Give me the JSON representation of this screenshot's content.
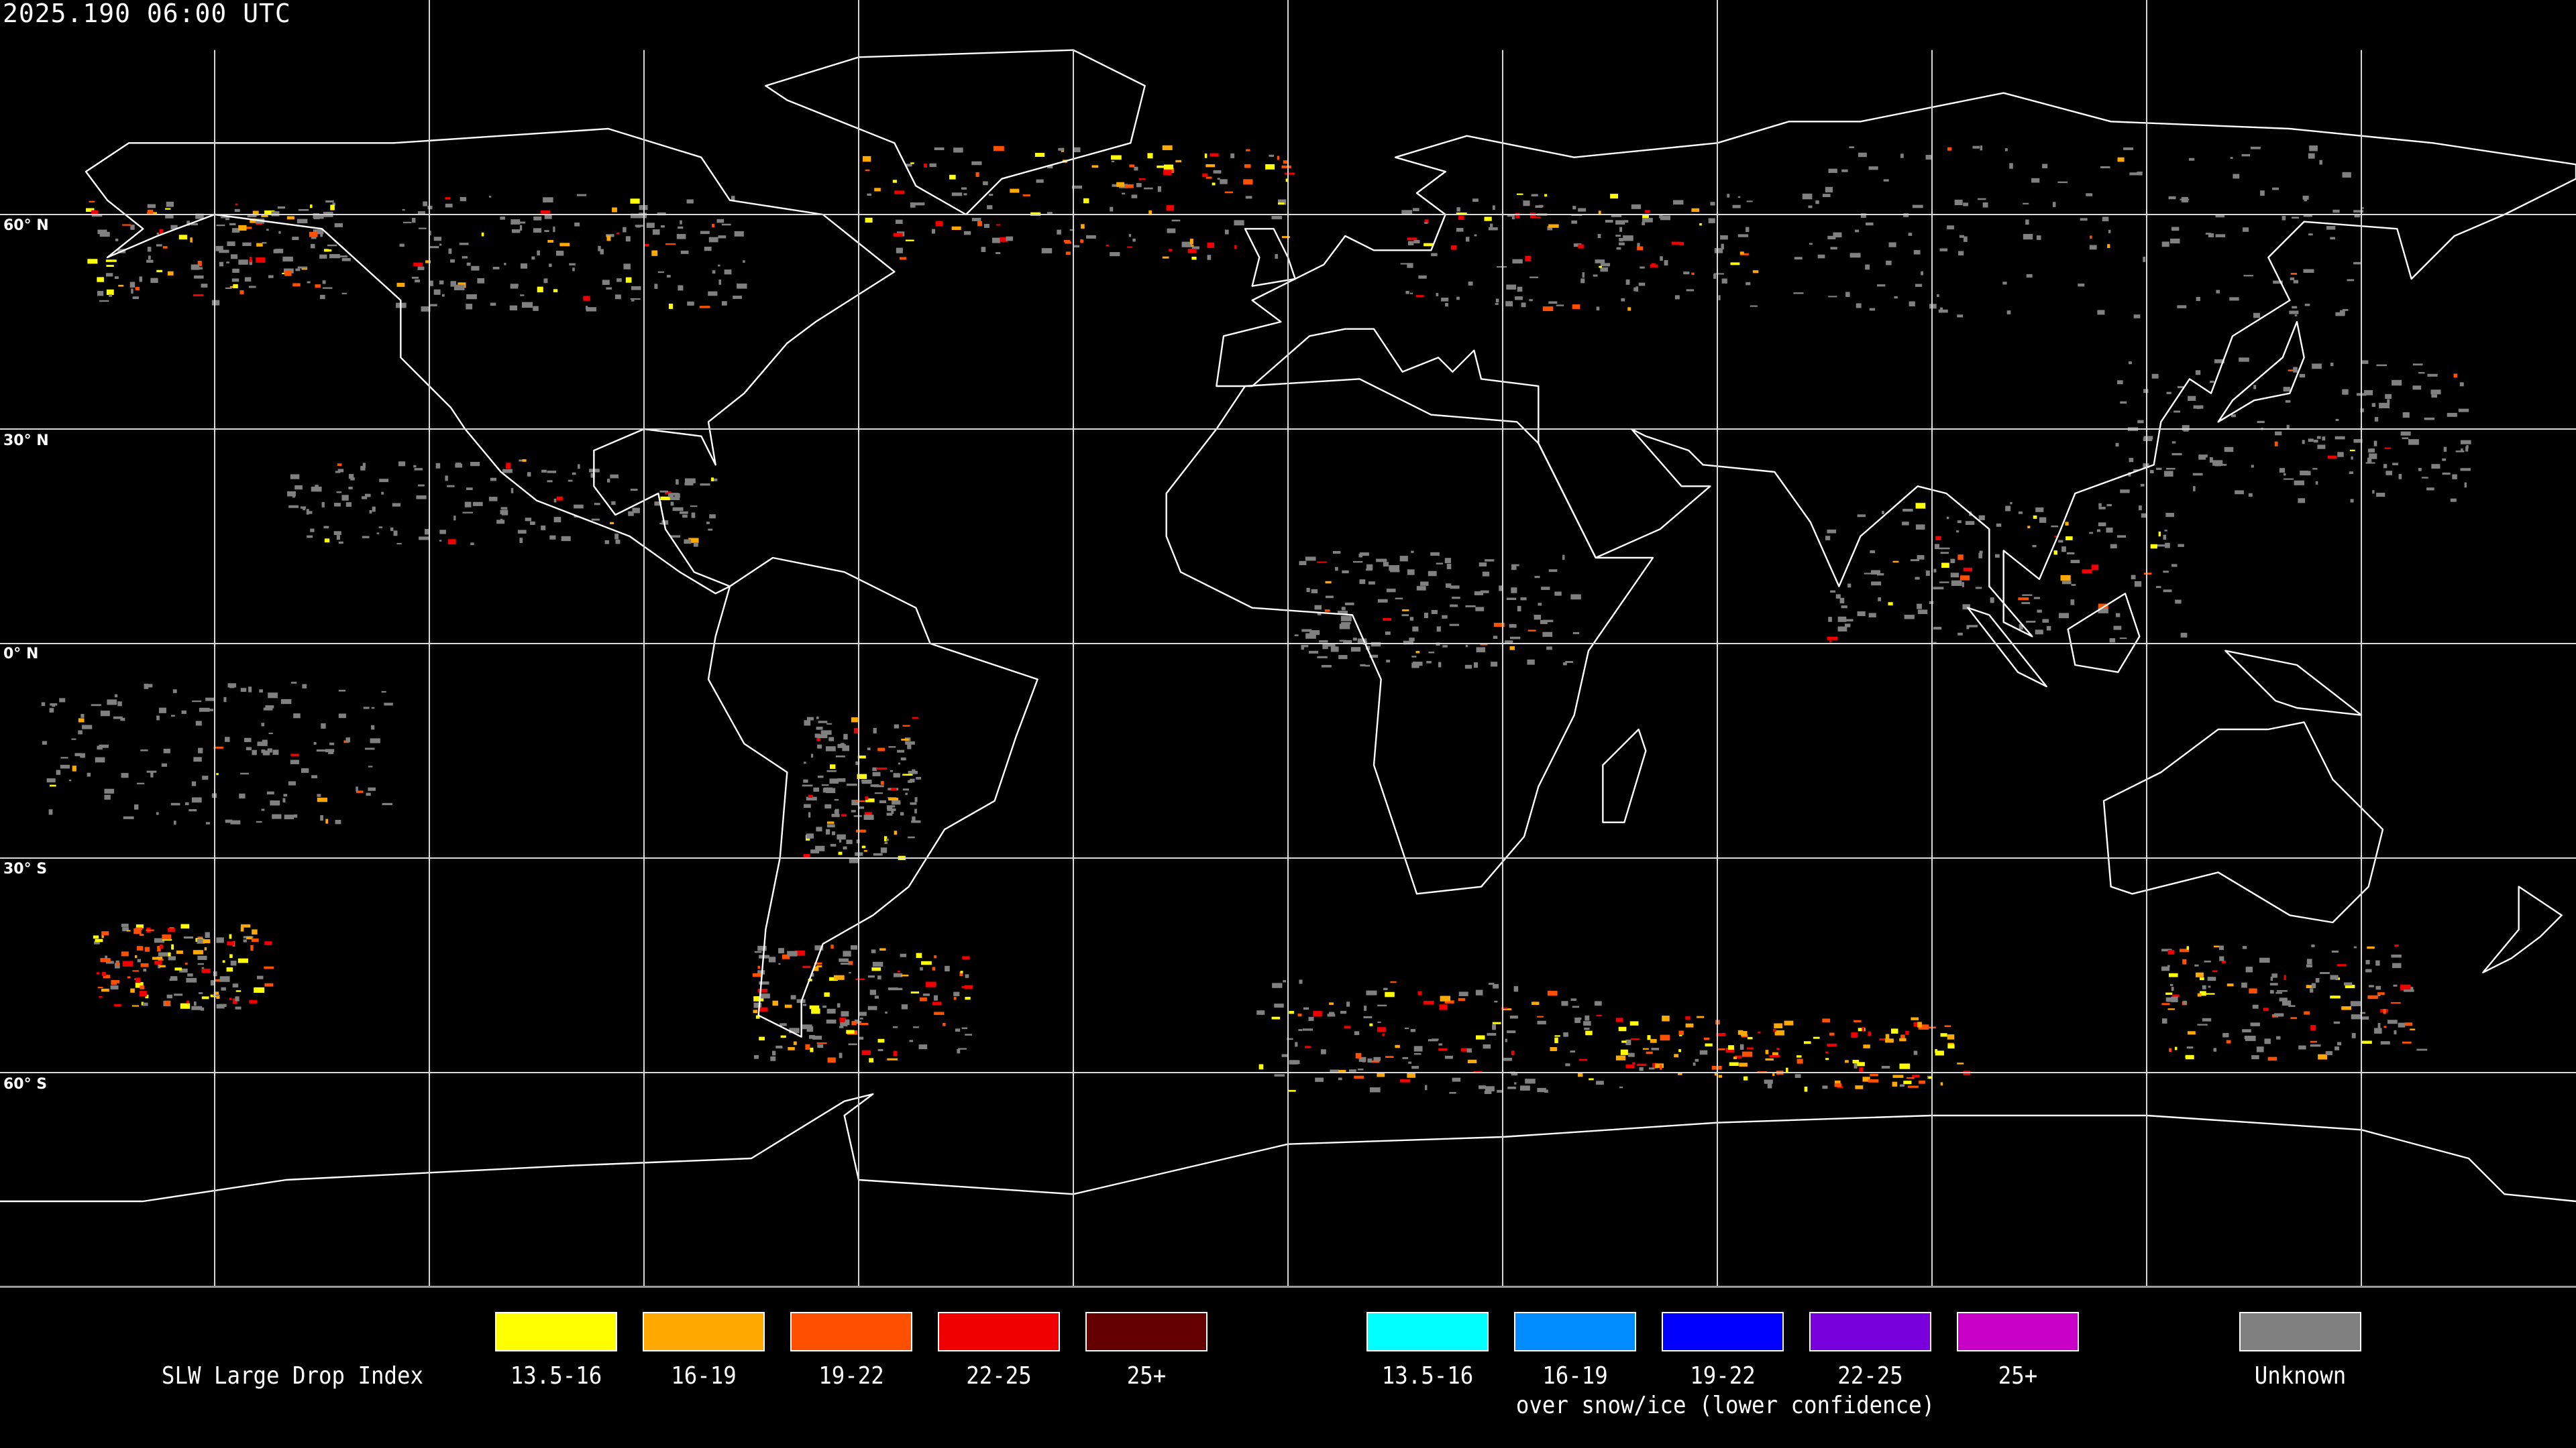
{
  "title": "2025.190 06:00 UTC",
  "map": {
    "projection": "equirectangular",
    "center_longitude": 0,
    "graticule_spacing_deg": 30,
    "lat_labels": [
      "60° N",
      "30° N",
      "0° N",
      "30° S",
      "60° S"
    ],
    "coastline_color": "#ffffff",
    "background_color": "#000000"
  },
  "legend": {
    "title": "SLW Large Drop Index",
    "main": [
      {
        "label": "13.5-16",
        "color": "#ffff00"
      },
      {
        "label": "16-19",
        "color": "#ffa800"
      },
      {
        "label": "19-22",
        "color": "#ff5000"
      },
      {
        "label": "22-25",
        "color": "#f00000"
      },
      {
        "label": "25+",
        "color": "#640000"
      }
    ],
    "snow_ice": [
      {
        "label": "13.5-16",
        "color": "#00ffff"
      },
      {
        "label": "16-19",
        "color": "#008cff"
      },
      {
        "label": "19-22",
        "color": "#0000ff"
      },
      {
        "label": "22-25",
        "color": "#7800dc"
      },
      {
        "label": "25+",
        "color": "#c800c8"
      }
    ],
    "snow_ice_caption": "over snow/ice (lower confidence)",
    "unknown": {
      "label": "Unknown",
      "color": "#808080"
    }
  }
}
